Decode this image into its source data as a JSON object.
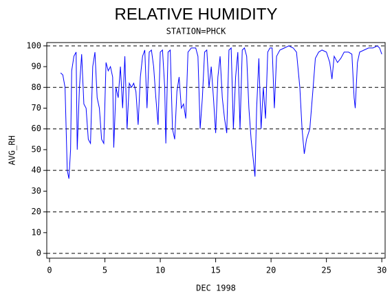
{
  "chart_data": {
    "type": "line",
    "title": "RELATIVE HUMIDITY",
    "subtitle": "STATION=PHCK",
    "x_label": "DEC 1998",
    "y_label": "AVG_RH",
    "xlim": [
      -0.25,
      30.3
    ],
    "ylim": [
      -2.3,
      101.6
    ],
    "xticks": [
      0,
      5,
      10,
      15,
      20,
      25,
      30
    ],
    "yticks": [
      0,
      10,
      20,
      30,
      40,
      50,
      60,
      70,
      80,
      90,
      100
    ],
    "grid_lines": [
      0,
      20,
      40,
      60,
      80,
      100
    ],
    "series": [
      {
        "name": "AVG_RH",
        "color": "#0000ff",
        "x": [
          1.0,
          1.2,
          1.4,
          1.6,
          1.75,
          1.9,
          2.0,
          2.2,
          2.4,
          2.5,
          2.7,
          2.9,
          3.1,
          3.3,
          3.5,
          3.7,
          3.9,
          4.1,
          4.3,
          4.5,
          4.7,
          4.9,
          5.1,
          5.3,
          5.5,
          5.7,
          5.8,
          6.0,
          6.2,
          6.4,
          6.6,
          6.8,
          7.0,
          7.2,
          7.4,
          7.6,
          7.8,
          8.0,
          8.2,
          8.4,
          8.6,
          8.8,
          9.0,
          9.2,
          9.4,
          9.6,
          9.8,
          10.0,
          10.2,
          10.4,
          10.5,
          10.7,
          10.9,
          11.1,
          11.3,
          11.5,
          11.7,
          11.9,
          12.1,
          12.3,
          12.5,
          12.8,
          13.2,
          13.4,
          13.6,
          13.8,
          14.0,
          14.2,
          14.4,
          14.6,
          14.8,
          15.0,
          15.2,
          15.4,
          15.6,
          15.8,
          16.0,
          16.2,
          16.4,
          16.6,
          16.8,
          17.0,
          17.2,
          17.4,
          17.6,
          17.8,
          18.0,
          18.2,
          18.4,
          18.55,
          18.7,
          18.9,
          19.1,
          19.3,
          19.5,
          19.7,
          19.9,
          20.1,
          20.3,
          20.5,
          20.8,
          21.2,
          21.6,
          22.0,
          22.3,
          22.6,
          22.8,
          23.0,
          23.2,
          23.5,
          23.8,
          24.0,
          24.3,
          24.6,
          25.0,
          25.3,
          25.5,
          25.7,
          26.0,
          26.3,
          26.6,
          27.0,
          27.3,
          27.5,
          27.6,
          27.8,
          28.0,
          28.4,
          28.8,
          29.2,
          29.6,
          29.8,
          30.0
        ],
        "values": [
          87,
          86,
          80,
          40,
          36,
          50,
          88,
          95,
          97,
          50,
          80,
          96,
          72,
          70,
          55,
          53,
          90,
          97,
          75,
          70,
          55,
          53,
          92,
          88,
          90,
          85,
          51,
          80,
          75,
          90,
          70,
          95,
          60,
          82,
          80,
          82,
          78,
          62,
          85,
          95,
          98,
          70,
          97,
          98,
          90,
          75,
          62,
          97,
          98,
          80,
          53,
          97,
          98,
          60,
          55,
          78,
          85,
          70,
          72,
          65,
          97,
          99,
          99,
          95,
          60,
          75,
          97,
          98,
          80,
          90,
          75,
          58,
          85,
          95,
          75,
          65,
          58,
          98,
          99,
          60,
          85,
          97,
          60,
          98,
          99,
          95,
          70,
          55,
          45,
          37,
          70,
          94,
          60,
          80,
          65,
          97,
          99,
          99,
          70,
          95,
          98,
          99,
          100,
          99,
          97,
          80,
          60,
          48,
          55,
          60,
          80,
          94,
          97,
          98,
          97,
          92,
          84,
          95,
          92,
          94,
          97,
          97,
          96,
          75,
          70,
          92,
          97,
          98,
          99,
          99,
          100,
          99,
          96
        ]
      }
    ]
  }
}
